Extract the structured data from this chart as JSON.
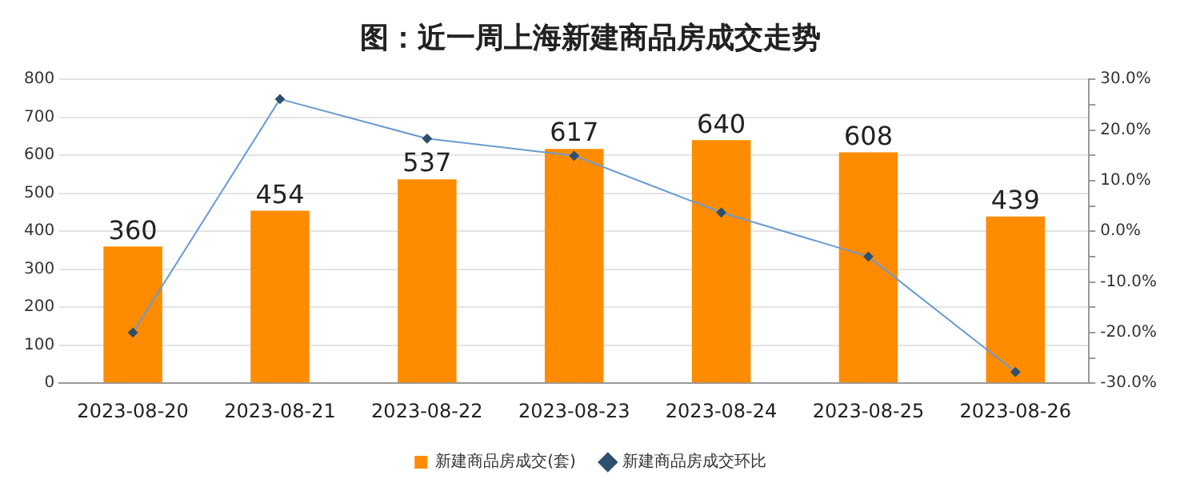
{
  "chart_data": {
    "type": "bar",
    "title": "图：近一周上海新建商品房成交走势",
    "categories": [
      "2023-08-20",
      "2023-08-21",
      "2023-08-22",
      "2023-08-23",
      "2023-08-24",
      "2023-08-25",
      "2023-08-26"
    ],
    "series": [
      {
        "name": "新建商品房成交(套)",
        "color": "#ff8c00",
        "values": [
          360,
          454,
          537,
          617,
          640,
          608,
          439
        ],
        "value_labels": [
          "360",
          "454",
          "537",
          "617",
          "640",
          "608",
          "439"
        ]
      },
      {
        "name": "新建商品房成交环比",
        "type": "line",
        "axis": "y2",
        "color": "#6a9bd1",
        "values": [
          -20.0,
          26.1,
          18.3,
          14.9,
          3.7,
          -5.0,
          -27.8
        ]
      }
    ],
    "ylim": [
      0,
      800
    ],
    "yticks": [
      0,
      100,
      200,
      300,
      400,
      500,
      600,
      700,
      800
    ],
    "y2lim": [
      -30,
      30
    ],
    "y2ticks": [
      {
        "value": -30,
        "label": "-30.0%"
      },
      {
        "value": -25,
        "label": null
      },
      {
        "value": -20,
        "label": "-20.0%"
      },
      {
        "value": -15,
        "label": null
      },
      {
        "value": -10,
        "label": "-10.0%"
      },
      {
        "value": -5,
        "label": null
      },
      {
        "value": 0,
        "label": "0.0%"
      },
      {
        "value": 5,
        "label": null
      },
      {
        "value": 10,
        "label": "10.0%"
      },
      {
        "value": 15,
        "label": null
      },
      {
        "value": 20,
        "label": "20.0%"
      },
      {
        "value": 25,
        "label": null
      },
      {
        "value": 30,
        "label": "30.0%"
      }
    ],
    "grid": "y",
    "legend": "bottom",
    "marker": "diamond"
  }
}
